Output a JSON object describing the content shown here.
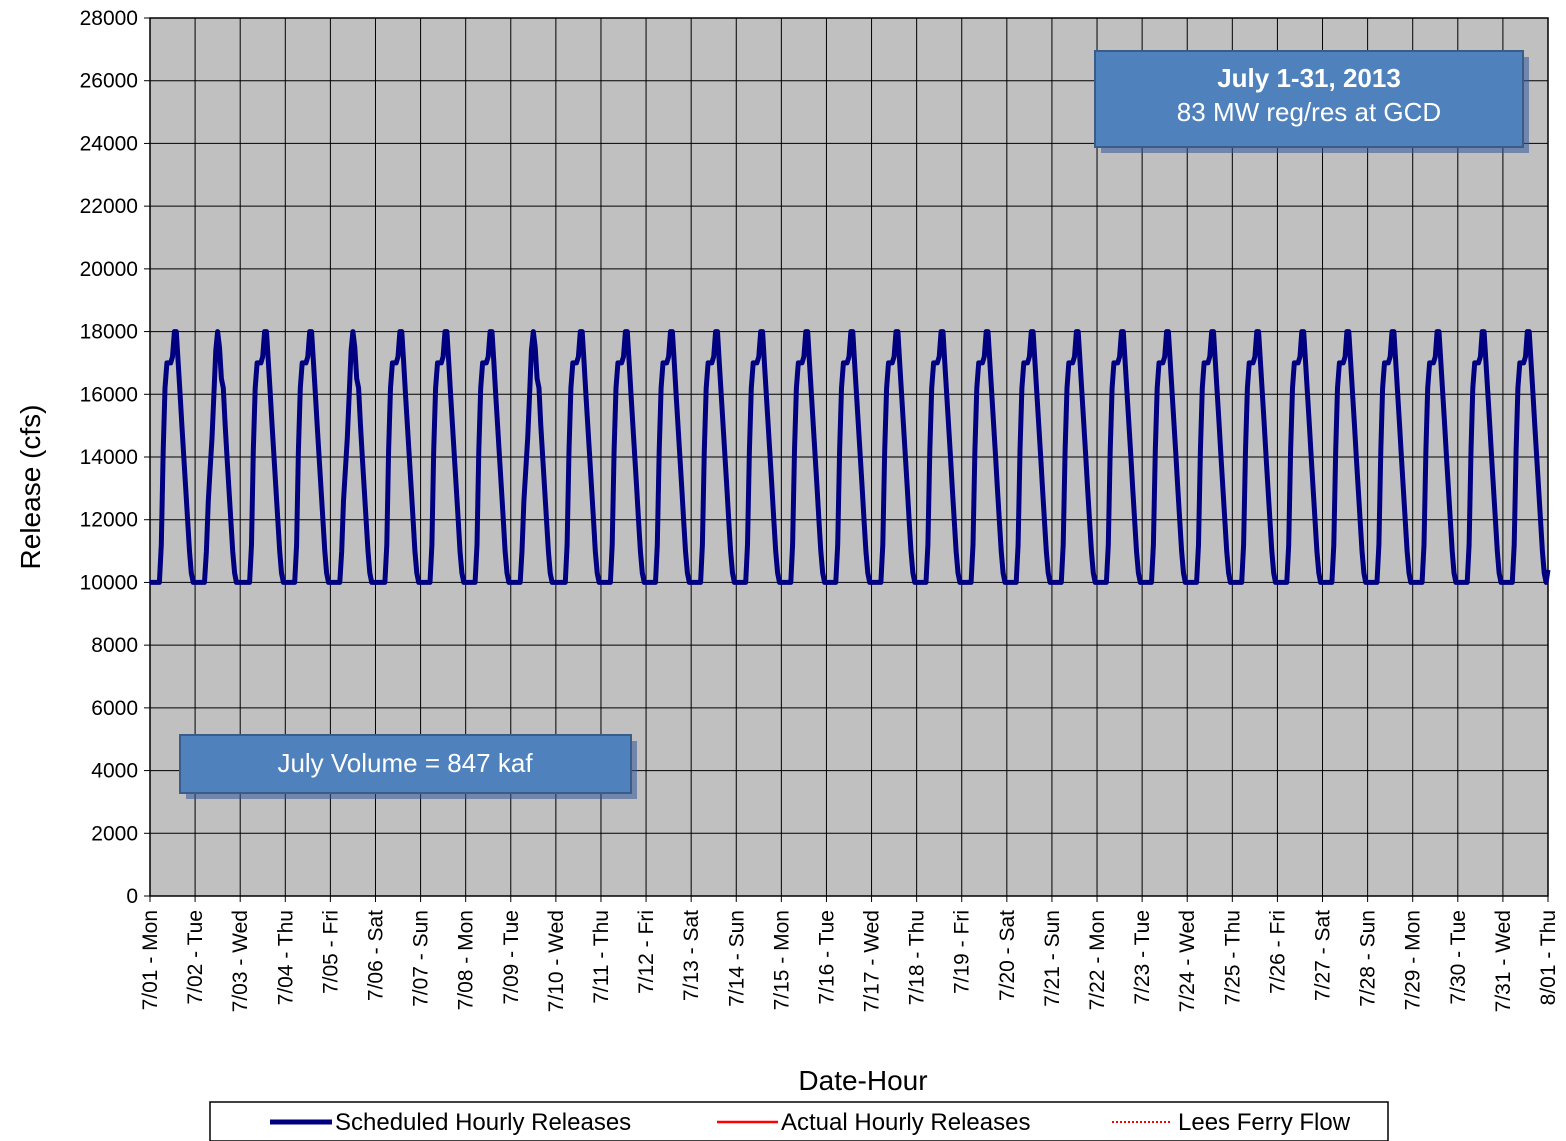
{
  "chart_data": {
    "type": "line",
    "xlabel": "Date-Hour",
    "ylabel": "Release (cfs)",
    "ylim": [
      0,
      28000
    ],
    "yticks": [
      0,
      2000,
      4000,
      6000,
      8000,
      10000,
      12000,
      14000,
      16000,
      18000,
      20000,
      22000,
      24000,
      26000,
      28000
    ],
    "xticks": [
      "7/01 - Mon",
      "7/02 - Tue",
      "7/03 - Wed",
      "7/04 - Thu",
      "7/05 - Fri",
      "7/06 - Sat",
      "7/07 - Sun",
      "7/08 - Mon",
      "7/09 - Tue",
      "7/10 - Wed",
      "7/11 - Thu",
      "7/12 - Fri",
      "7/13 - Sat",
      "7/14 - Sun",
      "7/15 - Mon",
      "7/16 - Tue",
      "7/17 - Wed",
      "7/18 - Thu",
      "7/19 - Fri",
      "7/20 - Sat",
      "7/21 - Sun",
      "7/22 - Mon",
      "7/23 - Tue",
      "7/24 - Wed",
      "7/25 - Thu",
      "7/26 - Fri",
      "7/27 - Sat",
      "7/28 - Sun",
      "7/29 - Mon",
      "7/30 - Tue",
      "7/31 - Wed",
      "8/01 - Thu"
    ],
    "grid": true,
    "legend_position": "bottom",
    "daily_profile_hours": [
      0,
      1,
      2,
      3,
      4,
      5,
      6,
      7,
      8,
      9,
      10,
      11,
      12,
      13,
      14,
      15,
      16,
      17,
      18,
      19,
      20,
      21,
      22,
      23
    ],
    "series": [
      {
        "name": "Scheduled Hourly Releases",
        "color": "#000080",
        "style": "solid",
        "daily_profile_cfs": [
          10000,
          10000,
          10000,
          10000,
          10000,
          10000,
          11200,
          14200,
          16200,
          17000,
          17000,
          17000,
          17200,
          18000,
          18000,
          17000,
          16000,
          15000,
          14000,
          13000,
          12000,
          11000,
          10300,
          10000
        ],
        "profile_variants": {
          "7/02 - Tue": [
            10000,
            10000,
            10000,
            10000,
            10000,
            10000,
            11000,
            12600,
            13600,
            14600,
            16000,
            17400,
            18000,
            17500,
            16500,
            16200,
            15000,
            14000,
            13000,
            12000,
            11000,
            10300,
            10000,
            10000
          ],
          "7/05 - Fri": [
            10000,
            10000,
            10000,
            10000,
            10000,
            10000,
            11000,
            12600,
            13600,
            14600,
            16000,
            17400,
            18000,
            17500,
            16500,
            16200,
            15000,
            14000,
            13000,
            12000,
            11000,
            10300,
            10000,
            10000
          ],
          "7/09 - Tue": [
            10000,
            10000,
            10000,
            10000,
            10000,
            10000,
            11000,
            12600,
            13600,
            14600,
            16000,
            17400,
            18000,
            17500,
            16500,
            16200,
            15000,
            14000,
            13000,
            12000,
            11000,
            10300,
            10000,
            10000
          ]
        },
        "last_value_cfs": 10400
      },
      {
        "name": "Actual Hourly Releases",
        "color": "#ff0000",
        "style": "solid",
        "values": []
      },
      {
        "name": "Lees Ferry Flow",
        "color": "#ff0000",
        "style": "dotted",
        "values": []
      }
    ],
    "annotations": {
      "title_line1": "July 1-31, 2013",
      "title_line2": "83 MW reg/res at GCD",
      "volume": "July Volume = 847 kaf"
    }
  }
}
